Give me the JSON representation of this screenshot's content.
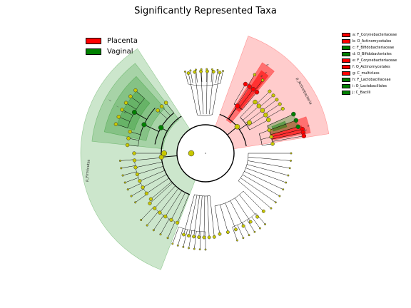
{
  "title": "Significantly Represented Taxa",
  "legend": [
    {
      "label": "Placenta",
      "color": "#ff0000"
    },
    {
      "label": "Vaginal",
      "color": "#008000"
    }
  ],
  "taxa_legend": [
    {
      "label": "a: F_Corynebacteriaceae",
      "color": "#ff0000"
    },
    {
      "label": "b: O_Actinomycetales",
      "color": "#ff0000"
    },
    {
      "label": "c: F_Bifidobacteriaceae",
      "color": "#008000"
    },
    {
      "label": "d: O_Bifidobacteriales",
      "color": "#008000"
    },
    {
      "label": "e: F_Corynebacteriaceae",
      "color": "#ff0000"
    },
    {
      "label": "f: O_Actinomycetales",
      "color": "#ff0000"
    },
    {
      "label": "g: C_multiclass",
      "color": "#ff0000"
    },
    {
      "label": "h: F_Lactobacillaceae",
      "color": "#008000"
    },
    {
      "label": "i: O_Lactobacillales",
      "color": "#008000"
    },
    {
      "label": "j: C_Bacilli",
      "color": "#008000"
    }
  ],
  "clade_labels": {
    "actinobacteria": "p_Actinobacteria",
    "firmicutes": "p_Firmicutes",
    "inner": [
      "a",
      "b",
      "e",
      "f",
      "g",
      "c",
      "d",
      "h",
      "i",
      "j"
    ]
  },
  "colors": {
    "placenta": "#ff0000",
    "vaginal": "#008000",
    "neutral_node": "#c8c800"
  }
}
